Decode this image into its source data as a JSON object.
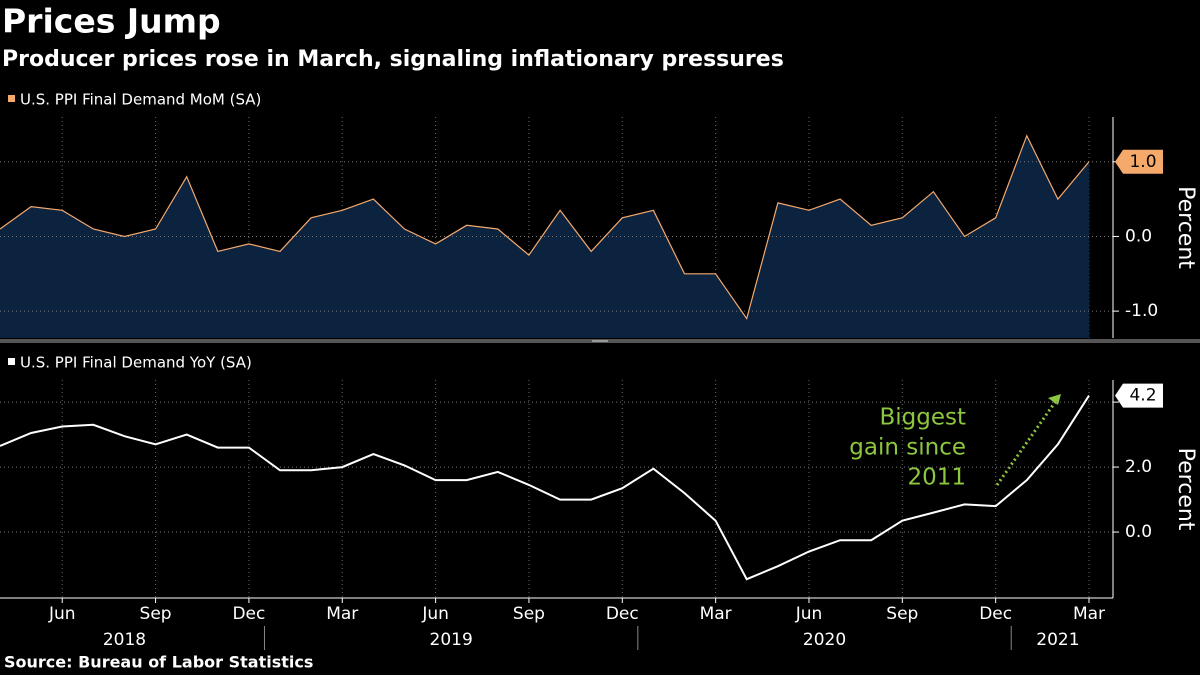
{
  "title": "Prices Jump",
  "subtitle": "Producer prices rose in March, signaling inflationary pressures",
  "source": "Source: Bureau of Labor Statistics",
  "chart_data": [
    {
      "type": "area",
      "y_label": "Percent",
      "ylim": [
        -1.36,
        1.6
      ],
      "yticks": [
        {
          "value": -1,
          "label": "-1.0"
        },
        {
          "value": 0,
          "label": "0.0"
        },
        {
          "value": 1,
          "label": "1.0"
        }
      ],
      "grid": true,
      "fill": "#0c2340",
      "series": [
        {
          "name": "U.S. PPI Final Demand MoM (SA)",
          "color": "#f5a96b",
          "values": [
            0.1,
            0.4,
            0.35,
            0.1,
            0.0,
            0.1,
            0.8,
            -0.2,
            -0.1,
            -0.2,
            0.25,
            0.35,
            0.5,
            0.1,
            -0.1,
            0.15,
            0.1,
            -0.25,
            0.35,
            -0.2,
            0.25,
            0.35,
            -0.5,
            -0.5,
            -1.1,
            0.45,
            0.35,
            0.5,
            0.15,
            0.25,
            0.6,
            0.0,
            0.25,
            1.35,
            0.5,
            1.0
          ],
          "value_labels": [
            null,
            null,
            null,
            null,
            null,
            null,
            null,
            null,
            null,
            null,
            null,
            null,
            null,
            null,
            null,
            null,
            null,
            null,
            null,
            null,
            null,
            null,
            null,
            null,
            null,
            null,
            null,
            null,
            null,
            null,
            null,
            null,
            null,
            null,
            null,
            "1.0"
          ]
        }
      ]
    },
    {
      "type": "line",
      "y_label": "Percent",
      "ylim": [
        -2.03,
        4.68
      ],
      "yticks": [
        {
          "value": 0,
          "label": "0.0"
        },
        {
          "value": 2,
          "label": "2.0"
        },
        {
          "value": 4,
          "label": "4.0"
        }
      ],
      "grid": true,
      "categories": [
        null,
        null,
        "Jun",
        null,
        null,
        "Sep",
        null,
        null,
        "Dec",
        null,
        null,
        "Mar",
        null,
        null,
        "Jun",
        null,
        null,
        "Sep",
        null,
        null,
        "Dec",
        null,
        null,
        "Mar",
        null,
        null,
        "Jun",
        null,
        null,
        "Sep",
        null,
        null,
        "Dec",
        null,
        null,
        "Mar"
      ],
      "years": [
        "2018",
        "2019",
        "2020",
        "2021"
      ],
      "annotation": [
        "Biggest",
        "gain since",
        "2011"
      ],
      "annotation_color": "#8dc63f",
      "series": [
        {
          "name": "U.S. PPI Final Demand YoY (SA)",
          "color": "#ffffff",
          "values": [
            2.65,
            3.05,
            3.25,
            3.3,
            2.95,
            2.7,
            3.0,
            2.6,
            2.6,
            1.9,
            1.9,
            2.0,
            2.4,
            2.05,
            1.6,
            1.6,
            1.85,
            1.45,
            1.0,
            1.0,
            1.35,
            1.95,
            1.2,
            0.35,
            -1.45,
            -1.05,
            -0.6,
            -0.25,
            -0.25,
            0.35,
            0.6,
            0.85,
            0.8,
            1.6,
            2.7,
            4.2
          ],
          "value_labels": [
            null,
            null,
            null,
            null,
            null,
            null,
            null,
            null,
            null,
            null,
            null,
            null,
            null,
            null,
            null,
            null,
            null,
            null,
            null,
            null,
            null,
            null,
            null,
            null,
            null,
            null,
            null,
            null,
            null,
            null,
            null,
            null,
            null,
            null,
            null,
            "4.2"
          ]
        }
      ]
    }
  ]
}
